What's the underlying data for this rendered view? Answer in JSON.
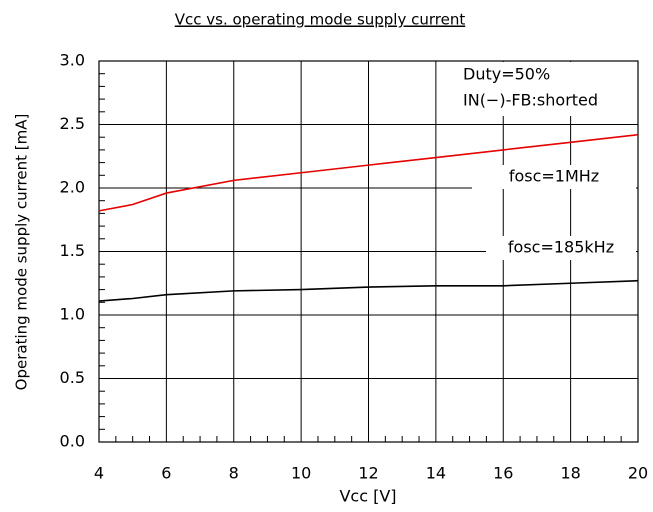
{
  "chart_data": {
    "type": "line",
    "title": "Vcc vs. operating mode supply current",
    "x_label": "Vcc  [V]",
    "y_label": "Operating mode supply current  [mA]",
    "annotations": [
      "Duty=50%",
      "IN(−)-FB:shorted"
    ],
    "x": [
      4,
      5,
      6,
      8,
      10,
      12,
      14,
      16,
      18,
      20
    ],
    "series": [
      {
        "name": "fosc=1MHz",
        "color": "#e60000",
        "values": [
          1.82,
          1.87,
          1.96,
          2.06,
          2.12,
          2.18,
          2.24,
          2.3,
          2.36,
          2.42
        ]
      },
      {
        "name": "fosc=185kHz",
        "color": "#000000",
        "values": [
          1.11,
          1.13,
          1.16,
          1.19,
          1.2,
          1.22,
          1.23,
          1.23,
          1.25,
          1.27
        ]
      }
    ],
    "xlim": [
      4,
      20
    ],
    "xticks": [
      4,
      6,
      8,
      10,
      12,
      14,
      16,
      18,
      20
    ],
    "ylim": [
      0,
      3
    ],
    "yticks": [
      {
        "value": 0,
        "label": "0.0"
      },
      0.5,
      {
        "value": 1,
        "label": "1.0"
      },
      1.5,
      {
        "value": 2,
        "label": "2.0"
      },
      2.5,
      {
        "value": 3,
        "label": "3.0"
      }
    ],
    "grid": true
  }
}
